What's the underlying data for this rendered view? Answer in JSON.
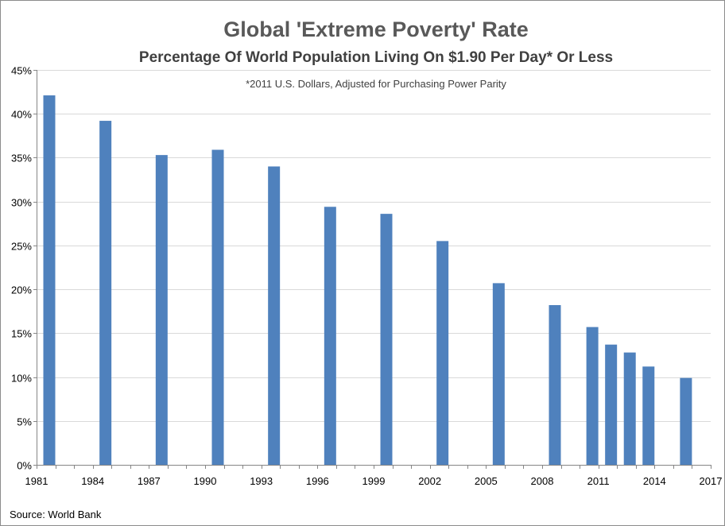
{
  "chart_data": {
    "type": "bar",
    "title": "Global 'Extreme Poverty' Rate",
    "subtitle": "Percentage Of World Population Living On $1.90 Per Day* Or Less",
    "note": "*2011 U.S. Dollars, Adjusted for Purchasing Power Parity",
    "source": "Source: World Bank",
    "xlabel": "",
    "ylabel": "",
    "xlim": [
      1981,
      2017
    ],
    "ylim": [
      0,
      45
    ],
    "x_ticks": [
      1981,
      1984,
      1987,
      1990,
      1993,
      1996,
      1999,
      2002,
      2005,
      2008,
      2011,
      2014,
      2017
    ],
    "y_ticks": [
      0,
      5,
      10,
      15,
      20,
      25,
      30,
      35,
      40,
      45
    ],
    "y_tick_labels": [
      "0%",
      "5%",
      "10%",
      "15%",
      "20%",
      "25%",
      "30%",
      "35%",
      "40%",
      "45%"
    ],
    "grid": true,
    "bar_color": "#4f81bd",
    "series": [
      {
        "name": "Extreme Poverty Rate",
        "x": [
          1981,
          1984,
          1987,
          1990,
          1993,
          1996,
          1999,
          2002,
          2005,
          2008,
          2010,
          2011,
          2012,
          2013,
          2015
        ],
        "values": [
          42.1,
          39.2,
          35.3,
          35.9,
          34.0,
          29.4,
          28.6,
          25.5,
          20.7,
          18.2,
          15.7,
          13.7,
          12.8,
          11.2,
          9.9
        ]
      }
    ]
  }
}
